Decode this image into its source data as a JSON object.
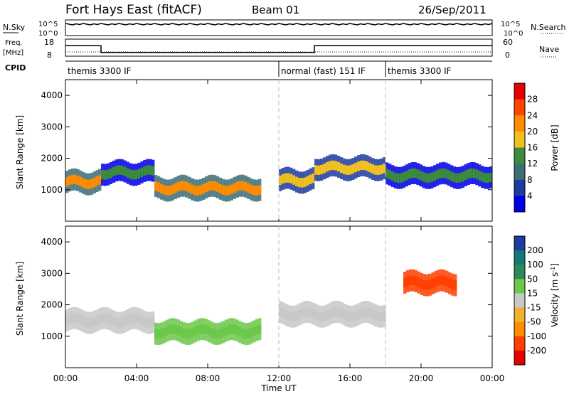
{
  "header": {
    "station": "Fort Hays East (fitACF)",
    "beam": "Beam 01",
    "date": "26/Sep/2011"
  },
  "strips": {
    "nsky_label": "N.Sky",
    "nsky_ticks": [
      "10^5",
      "10^0"
    ],
    "nsearch_label": "N.Search",
    "nsearch_ticks": [
      "10^5",
      "10^0"
    ],
    "freq_label_line1": "Freq.",
    "freq_label_line2": "[MHz]",
    "freq_ticks": [
      "18",
      "8"
    ],
    "nave_label": "Nave",
    "nave_ticks": [
      "60",
      "0"
    ],
    "cpid_label": "CPID",
    "cpid_modes": [
      {
        "name": "themis 3300 IF",
        "start_hour": 0,
        "end_hour": 12
      },
      {
        "name": "normal (fast) 151 IF",
        "start_hour": 12,
        "end_hour": 18
      },
      {
        "name": "themis 3300 IF",
        "start_hour": 18,
        "end_hour": 24
      }
    ],
    "freq_steps_mhz": [
      {
        "from_hour": 0,
        "to_hour": 2,
        "value": 15
      },
      {
        "from_hour": 2,
        "to_hour": 14,
        "value": 10.5
      },
      {
        "from_hour": 14,
        "to_hour": 24,
        "value": 15
      }
    ]
  },
  "axes": {
    "ylabel": "Slant Range [km]",
    "yticks": [
      "1000",
      "2000",
      "3000",
      "4000"
    ],
    "xlabel": "Time UT",
    "xticks": [
      "00:00",
      "04:00",
      "08:00",
      "12:00",
      "16:00",
      "20:00",
      "00:00"
    ]
  },
  "colorbars": {
    "power_label": "Power [dB]",
    "power_ticks": [
      "28",
      "24",
      "20",
      "16",
      "12",
      "8",
      "4"
    ],
    "power_colors": [
      "#e60000",
      "#ff4400",
      "#ff8c00",
      "#f0c020",
      "#3c8c3c",
      "#3c6e78",
      "#1e3ca0",
      "#0000e6"
    ],
    "velocity_label": "Velocity [m s",
    "velocity_label_sup": "-1",
    "velocity_label_end": "]",
    "velocity_ticks": [
      "200",
      "100",
      "50",
      "15",
      "-15",
      "-50",
      "-100",
      "-200"
    ],
    "velocity_colors": [
      "#1e3ca0",
      "#147878",
      "#2e8b57",
      "#6cc84a",
      "#c8c8c8",
      "#f0b030",
      "#ff8c00",
      "#ff4000",
      "#e60000"
    ]
  },
  "chart_data": [
    {
      "type": "heatmap",
      "title": "Power",
      "x_range_hours": [
        0,
        24
      ],
      "ylim": [
        0,
        4500
      ],
      "grid": false,
      "bands": [
        {
          "t": [
            0,
            2
          ],
          "range_center_km": 1250,
          "value_db": 24
        },
        {
          "t": [
            2,
            5
          ],
          "range_center_km": 1550,
          "value_db": 14
        },
        {
          "t": [
            5,
            11
          ],
          "range_center_km": 1050,
          "value_db": 22
        },
        {
          "t": [
            12,
            14
          ],
          "range_center_km": 1300,
          "value_db": 18
        },
        {
          "t": [
            14,
            18
          ],
          "range_center_km": 1700,
          "value_db": 20
        },
        {
          "t": [
            18,
            24
          ],
          "range_center_km": 1450,
          "value_db": 16
        }
      ]
    },
    {
      "type": "heatmap",
      "title": "Velocity",
      "x_range_hours": [
        0,
        24
      ],
      "ylim": [
        0,
        4500
      ],
      "grid": false,
      "bands": [
        {
          "t": [
            0,
            5
          ],
          "range_center_km": 1500,
          "value_ms": 0
        },
        {
          "t": [
            5,
            11
          ],
          "range_center_km": 1150,
          "value_ms": 30
        },
        {
          "t": [
            12,
            18
          ],
          "range_center_km": 1700,
          "value_ms": -10
        },
        {
          "t": [
            19,
            22
          ],
          "range_center_km": 2700,
          "value_ms": -200
        }
      ]
    }
  ]
}
